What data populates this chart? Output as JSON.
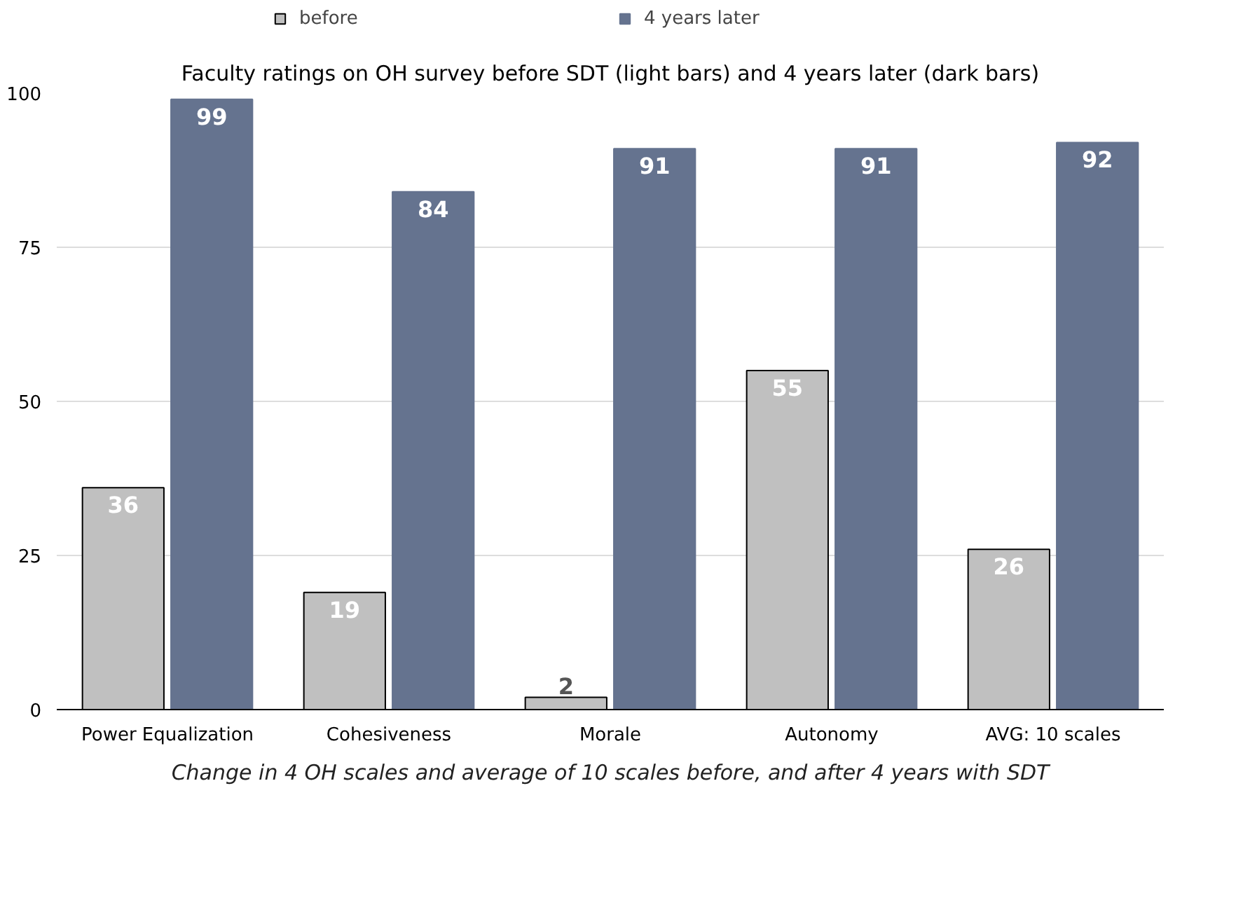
{
  "chart_data": {
    "type": "bar",
    "title": "Faculty ratings on OH survey before SDT (light bars) and 4 years later (dark bars)",
    "categories": [
      "Power Equalization",
      "Cohesiveness",
      "Morale",
      "Autonomy",
      "AVG: 10 scales"
    ],
    "series": [
      {
        "name": "before",
        "color": "#c0c0c0",
        "values": [
          36,
          19,
          2,
          55,
          26
        ]
      },
      {
        "name": "4 years later",
        "color": "#65738f",
        "values": [
          99,
          84,
          91,
          91,
          92
        ]
      }
    ],
    "ylim": [
      0,
      100
    ],
    "yticks": [
      0,
      25,
      50,
      75,
      100
    ],
    "grid": "y",
    "legend": "top",
    "data_labels": true,
    "annotations": [
      "Change in 4 OH scales and average of 10 scales before, and after 4 years with SDT"
    ]
  }
}
